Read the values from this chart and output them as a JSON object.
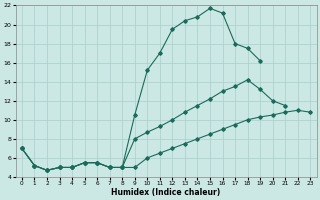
{
  "xlabel": "Humidex (Indice chaleur)",
  "bg_color": "#cce8e5",
  "grid_color": "#aacfcc",
  "line_color": "#1a6b5a",
  "xlim": [
    -0.5,
    23.5
  ],
  "ylim": [
    4,
    22
  ],
  "xticks": [
    0,
    1,
    2,
    3,
    4,
    5,
    6,
    7,
    8,
    9,
    10,
    11,
    12,
    13,
    14,
    15,
    16,
    17,
    18,
    19,
    20,
    21,
    22,
    23
  ],
  "yticks": [
    4,
    6,
    8,
    10,
    12,
    14,
    16,
    18,
    20,
    22
  ],
  "lines": [
    {
      "x": [
        0,
        1,
        2,
        3,
        4,
        5,
        6,
        7,
        8,
        9,
        10,
        11,
        12,
        13,
        14,
        15,
        16,
        17,
        18,
        19,
        20,
        21,
        22,
        23
      ],
      "y": [
        7,
        5.2,
        4.7,
        5,
        5,
        5.5,
        5.5,
        5,
        5,
        10.5,
        15.2,
        17,
        19.5,
        20.4,
        20.8,
        21.7,
        21.2,
        18,
        17.5,
        16.2,
        null,
        null,
        null,
        null
      ]
    },
    {
      "x": [
        0,
        1,
        2,
        3,
        4,
        5,
        6,
        7,
        8,
        9,
        10,
        11,
        12,
        13,
        14,
        15,
        16,
        17,
        18,
        19,
        20,
        21,
        22,
        23
      ],
      "y": [
        7,
        5.2,
        4.7,
        5,
        5,
        5.5,
        5.5,
        5,
        5,
        8,
        8.7,
        9.3,
        10,
        10.8,
        11.5,
        12.2,
        13,
        13.5,
        14.2,
        13.2,
        12,
        11.5,
        null,
        null
      ]
    },
    {
      "x": [
        0,
        1,
        2,
        3,
        4,
        5,
        6,
        7,
        8,
        9,
        10,
        11,
        12,
        13,
        14,
        15,
        16,
        17,
        18,
        19,
        20,
        21,
        22,
        23
      ],
      "y": [
        7,
        5.2,
        4.7,
        5,
        5,
        5.5,
        5.5,
        5,
        5,
        5,
        6,
        6.5,
        7,
        7.5,
        8,
        8.5,
        9,
        9.5,
        10,
        10.3,
        10.5,
        10.8,
        11,
        10.8
      ]
    }
  ]
}
